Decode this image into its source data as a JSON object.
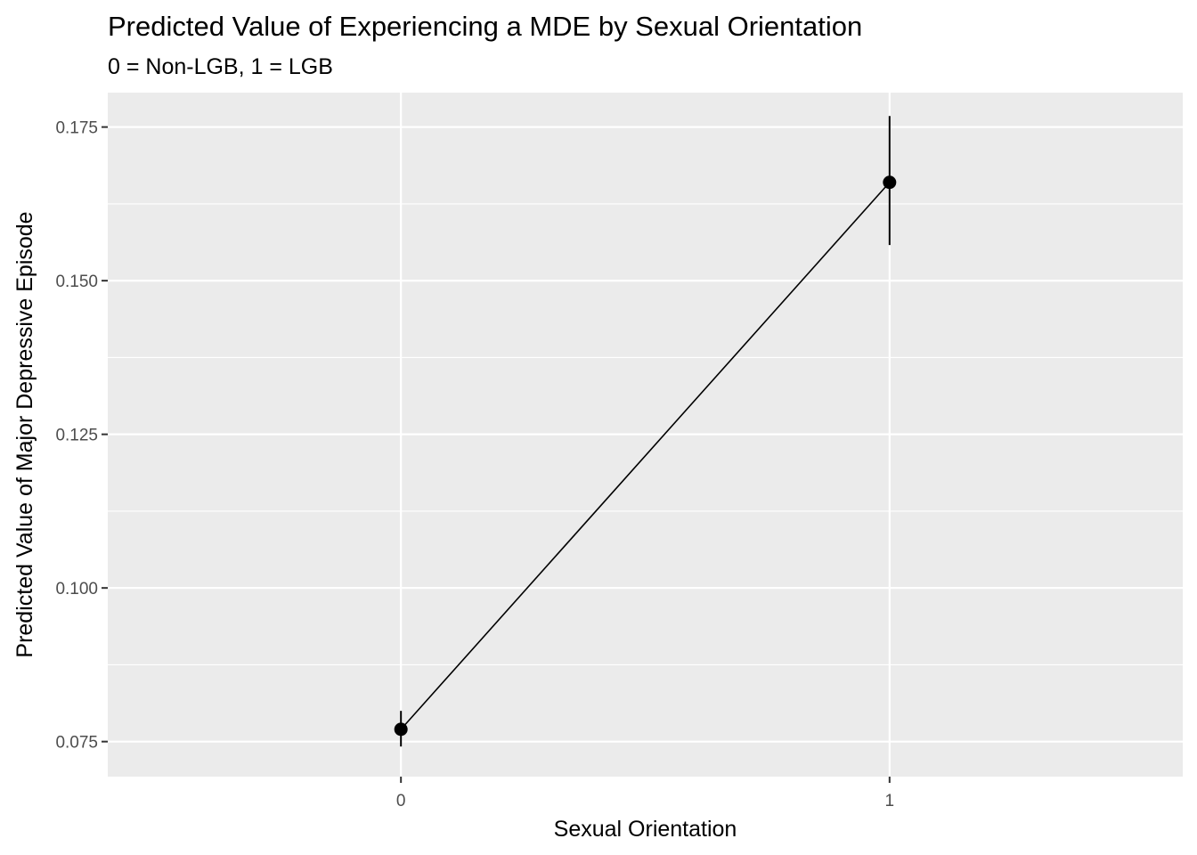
{
  "chart_data": {
    "type": "line",
    "title": "Predicted Value of Experiencing a MDE by Sexual Orientation",
    "subtitle": "0 = Non-LGB, 1 = LGB",
    "xlabel": "Sexual Orientation",
    "ylabel": "Predicted Value of Major Depressive Episode",
    "categories": [
      "0",
      "1"
    ],
    "series": [
      {
        "values": [
          0.077,
          0.166
        ],
        "lower": [
          0.0742,
          0.1558
        ],
        "upper": [
          0.08,
          0.1768
        ]
      }
    ],
    "ylim": [
      0.0693,
      0.1806
    ],
    "yticks": [
      0.075,
      0.1,
      0.125,
      0.15,
      0.175
    ],
    "ytick_labels": [
      "0.075",
      "0.100",
      "0.125",
      "0.150",
      "0.175"
    ],
    "grid": true,
    "legend": "none",
    "colors": {
      "panel_background": "#ebebeb",
      "grid": "#ffffff",
      "marks": "#000000",
      "tick_text": "#4d4d4d"
    }
  }
}
